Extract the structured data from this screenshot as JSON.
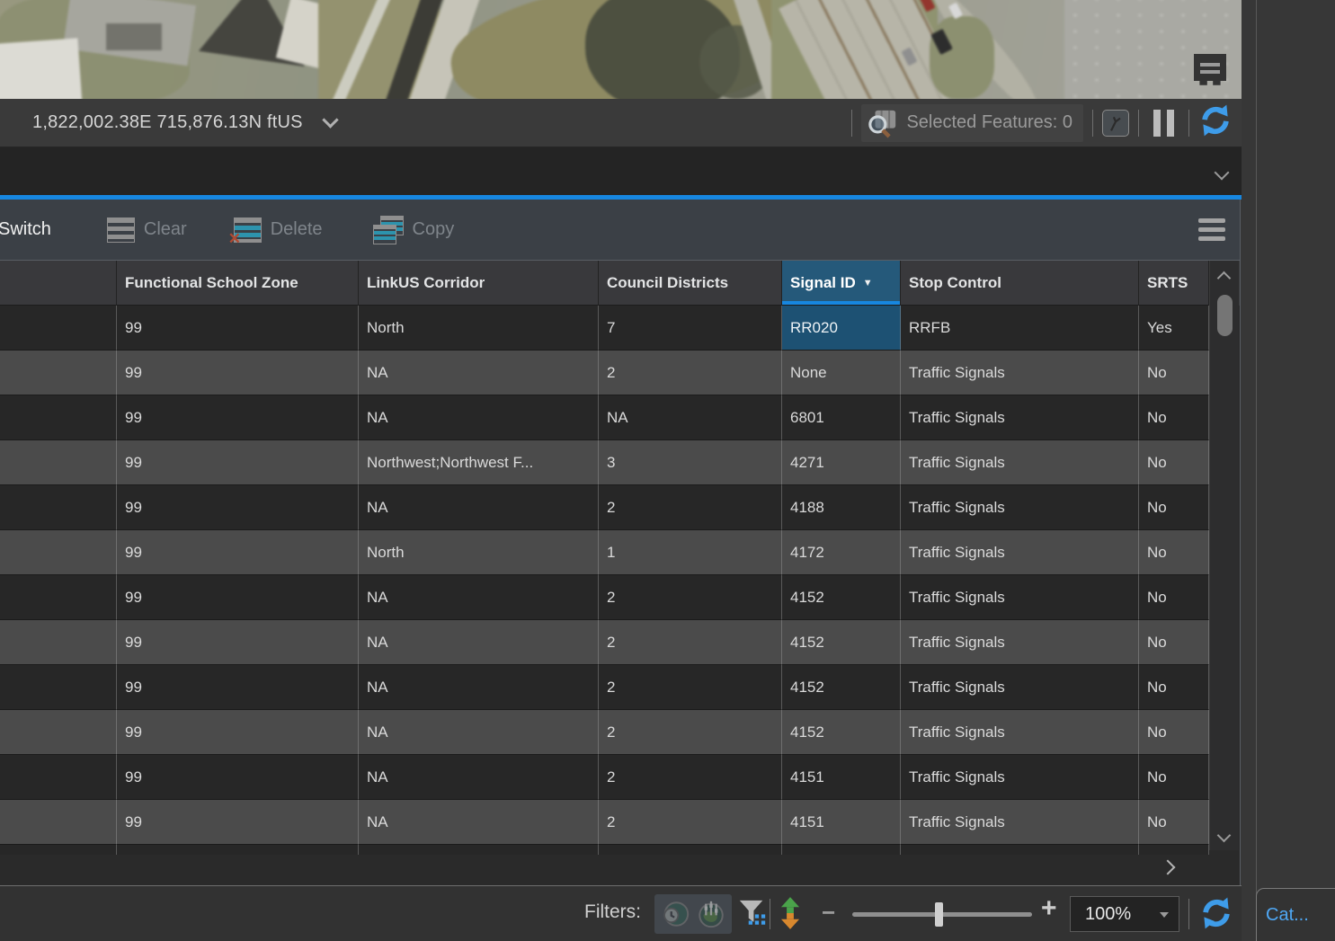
{
  "colors": {
    "accent": "#1787e0",
    "sortheader": "#25597a",
    "selection": "#1d5173",
    "refreshblue": "#3e9ce9",
    "cataloglink": "#4fa8f5"
  },
  "map_view": {
    "coordinate_readout": "1,822,002.38E 715,876.13N ftUS",
    "selected_features_label": "Selected Features: 0"
  },
  "attribute_pane": {
    "toolbar": {
      "switch": "Switch",
      "clear": "Clear",
      "delete": "Delete",
      "copy": "Copy"
    },
    "table": {
      "columns": [
        "",
        "Functional School Zone",
        "LinkUS Corridor",
        "Council Districts",
        "Signal ID",
        "Stop Control",
        "SRTS"
      ],
      "sorted_column": "Signal ID",
      "sort_direction": "descending",
      "sort_caret_glyph": "▼",
      "selected_cell": {
        "row_index": 0,
        "column": "Signal ID"
      },
      "rows": [
        [
          "",
          "99",
          "North",
          "7",
          "RR020",
          "RRFB",
          "Yes"
        ],
        [
          "",
          "99",
          "NA",
          "2",
          "None",
          "Traffic Signals",
          "No"
        ],
        [
          "",
          "99",
          "NA",
          "NA",
          "6801",
          "Traffic Signals",
          "No"
        ],
        [
          "",
          "99",
          "Northwest;Northwest F...",
          "3",
          "4271",
          "Traffic Signals",
          "No"
        ],
        [
          "",
          "99",
          "NA",
          "2",
          "4188",
          "Traffic Signals",
          "No"
        ],
        [
          "",
          "99",
          "North",
          "1",
          "4172",
          "Traffic Signals",
          "No"
        ],
        [
          "",
          "99",
          "NA",
          "2",
          "4152",
          "Traffic Signals",
          "No"
        ],
        [
          "",
          "99",
          "NA",
          "2",
          "4152",
          "Traffic Signals",
          "No"
        ],
        [
          "",
          "99",
          "NA",
          "2",
          "4152",
          "Traffic Signals",
          "No"
        ],
        [
          "",
          "99",
          "NA",
          "2",
          "4152",
          "Traffic Signals",
          "No"
        ],
        [
          "",
          "99",
          "NA",
          "2",
          "4151",
          "Traffic Signals",
          "No"
        ],
        [
          "",
          "99",
          "NA",
          "2",
          "4151",
          "Traffic Signals",
          "No"
        ]
      ]
    },
    "footer": {
      "filters_label": "Filters:",
      "zoom_out_glyph": "−",
      "zoom_in_glyph": "+",
      "zoom_level": "100%"
    },
    "delete_x_glyph": "✕"
  },
  "catalog_tab": {
    "label": "Cat..."
  }
}
